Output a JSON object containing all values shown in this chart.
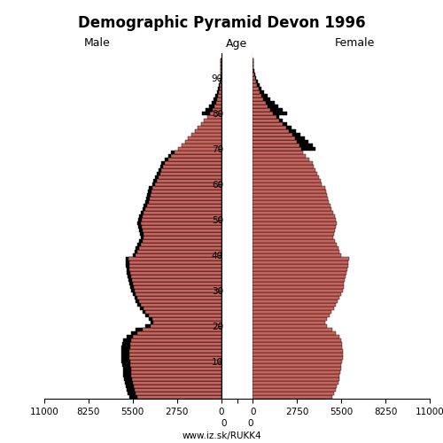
{
  "title": "Demographic Pyramid Devon 1996",
  "male_label": "Male",
  "female_label": "Female",
  "age_label": "Age",
  "url": "www.iz.sk/RUKK4",
  "xlim": 11000,
  "bar_color_main": "#c8645e",
  "bar_color_excess": "#000000",
  "bar_edge_color": "#000000",
  "bar_linewidth": 0.3,
  "ages": [
    0,
    1,
    2,
    3,
    4,
    5,
    6,
    7,
    8,
    9,
    10,
    11,
    12,
    13,
    14,
    15,
    16,
    17,
    18,
    19,
    20,
    21,
    22,
    23,
    24,
    25,
    26,
    27,
    28,
    29,
    30,
    31,
    32,
    33,
    34,
    35,
    36,
    37,
    38,
    39,
    40,
    41,
    42,
    43,
    44,
    45,
    46,
    47,
    48,
    49,
    50,
    51,
    52,
    53,
    54,
    55,
    56,
    57,
    58,
    59,
    60,
    61,
    62,
    63,
    64,
    65,
    66,
    67,
    68,
    69,
    70,
    71,
    72,
    73,
    74,
    75,
    76,
    77,
    78,
    79,
    80,
    81,
    82,
    83,
    84,
    85,
    86,
    87,
    88,
    89,
    90,
    91,
    92,
    93,
    94,
    95
  ],
  "male": [
    5200,
    5300,
    5400,
    5450,
    5500,
    5550,
    5580,
    5600,
    5620,
    5650,
    5680,
    5700,
    5720,
    5700,
    5680,
    5650,
    5600,
    5500,
    5200,
    4900,
    4400,
    4200,
    4300,
    4500,
    4700,
    4850,
    5000,
    5100,
    5200,
    5300,
    5400,
    5450,
    5500,
    5550,
    5600,
    5650,
    5700,
    5720,
    5730,
    5750,
    5300,
    5200,
    5100,
    5000,
    4900,
    4800,
    4850,
    4900,
    4950,
    5000,
    4950,
    4900,
    4800,
    4700,
    4600,
    4500,
    4450,
    4400,
    4350,
    4300,
    4100,
    4000,
    3900,
    3800,
    3700,
    3600,
    3500,
    3300,
    3100,
    2900,
    2650,
    2450,
    2250,
    2050,
    1850,
    1650,
    1450,
    1250,
    1050,
    880,
    680,
    540,
    420,
    330,
    255,
    195,
    145,
    105,
    75,
    52,
    35,
    23,
    15,
    9,
    5,
    3
  ],
  "female": [
    4950,
    5050,
    5150,
    5220,
    5300,
    5350,
    5400,
    5450,
    5480,
    5510,
    5550,
    5580,
    5600,
    5580,
    5560,
    5530,
    5480,
    5380,
    5150,
    4950,
    4600,
    4500,
    4600,
    4750,
    4900,
    5050,
    5180,
    5280,
    5380,
    5480,
    5580,
    5630,
    5680,
    5730,
    5780,
    5830,
    5880,
    5920,
    5950,
    5980,
    5500,
    5400,
    5300,
    5200,
    5100,
    5000,
    5050,
    5100,
    5150,
    5200,
    5150,
    5100,
    5000,
    4900,
    4800,
    4700,
    4650,
    4600,
    4550,
    4500,
    4300,
    4200,
    4100,
    4000,
    3900,
    3800,
    3700,
    3500,
    3300,
    3100,
    3000,
    2900,
    2750,
    2600,
    2450,
    2250,
    2050,
    1850,
    1650,
    1450,
    1250,
    1080,
    920,
    780,
    650,
    540,
    430,
    340,
    260,
    185,
    125,
    83,
    54,
    33,
    19,
    10
  ],
  "male_excess": [
    500,
    500,
    500,
    500,
    500,
    500,
    500,
    500,
    500,
    500,
    500,
    500,
    500,
    500,
    500,
    500,
    500,
    400,
    400,
    400,
    300,
    200,
    200,
    200,
    200,
    200,
    200,
    200,
    200,
    200,
    200,
    200,
    200,
    200,
    200,
    200,
    200,
    200,
    200,
    200,
    200,
    200,
    200,
    200,
    200,
    200,
    200,
    200,
    200,
    200,
    200,
    200,
    200,
    200,
    200,
    200,
    200,
    200,
    200,
    200,
    200,
    200,
    200,
    200,
    200,
    200,
    200,
    200,
    200,
    200,
    0,
    0,
    0,
    0,
    0,
    0,
    0,
    0,
    0,
    0,
    500,
    420,
    340,
    270,
    200,
    145,
    100,
    70,
    45,
    28,
    18,
    10,
    6,
    3,
    2,
    1
  ],
  "female_excess": [
    0,
    0,
    0,
    0,
    0,
    0,
    0,
    0,
    0,
    0,
    0,
    0,
    0,
    0,
    0,
    0,
    0,
    0,
    0,
    0,
    0,
    0,
    0,
    0,
    0,
    0,
    0,
    0,
    0,
    0,
    0,
    0,
    0,
    0,
    0,
    0,
    0,
    0,
    0,
    0,
    0,
    0,
    0,
    0,
    0,
    0,
    0,
    0,
    0,
    0,
    0,
    0,
    0,
    0,
    0,
    0,
    0,
    0,
    0,
    0,
    0,
    0,
    0,
    0,
    0,
    0,
    0,
    0,
    0,
    0,
    900,
    800,
    700,
    600,
    500,
    400,
    330,
    270,
    210,
    160,
    900,
    780,
    660,
    550,
    450,
    360,
    280,
    210,
    150,
    100,
    65,
    40,
    24,
    14,
    7,
    3
  ]
}
